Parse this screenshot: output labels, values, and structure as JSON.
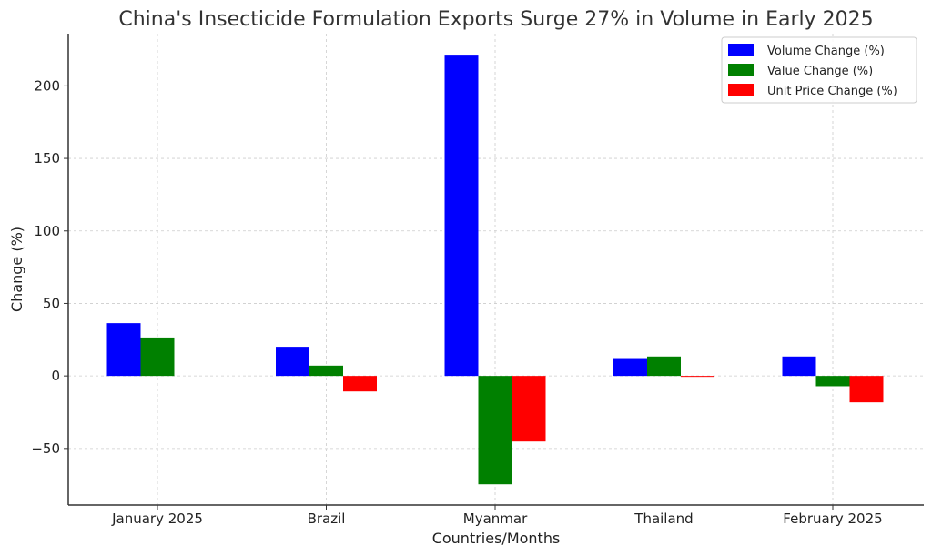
{
  "chart_data": {
    "type": "bar",
    "title": "China's Insecticide Formulation Exports Surge 27% in Volume in Early 2025",
    "xlabel": "Countries/Months",
    "ylabel": "Change (%)",
    "categories": [
      "January 2025",
      "Brazil",
      "Myanmar",
      "Thailand",
      "February 2025"
    ],
    "series": [
      {
        "name": "Volume Change (%)",
        "color": "#0000ff",
        "values": [
          36.4,
          20.1,
          221.5,
          12.3,
          13.4
        ]
      },
      {
        "name": "Value Change (%)",
        "color": "#008000",
        "values": [
          26.5,
          7.1,
          -74.7,
          13.4,
          -7.1
        ]
      },
      {
        "name": "Unit Price Change (%)",
        "color": "#ff0000",
        "values": [
          0,
          -10.7,
          -45.2,
          -0.5,
          -18.2
        ]
      }
    ],
    "yticks": [
      -50,
      0,
      50,
      100,
      150,
      200
    ],
    "ytick_labels": [
      "−50",
      "0",
      "50",
      "100",
      "150",
      "200"
    ],
    "ylim": [
      -89,
      236
    ],
    "grid": true,
    "legend": "top-right"
  }
}
